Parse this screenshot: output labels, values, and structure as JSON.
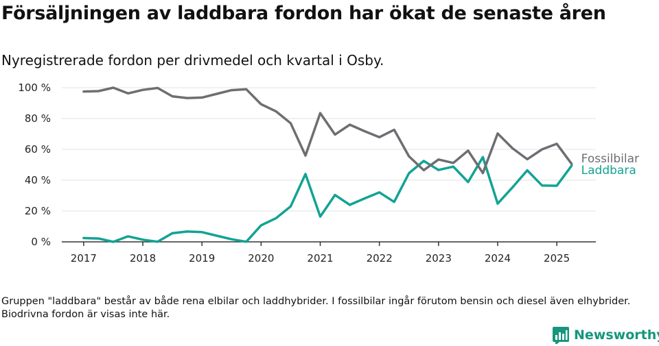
{
  "header": {
    "title": "Försäljningen av laddbara fordon har ökat de senaste åren",
    "subtitle": "Nyregistrerade fordon per drivmedel och kvartal i Osby."
  },
  "footnote": "Gruppen \"laddbara\" består av både rena elbilar och laddhybrider. I fossilbilar ingår förutom bensin och diesel även elhybrider. Biodrivna fordon är visas inte här.",
  "brand": {
    "name": "Newsworthy",
    "icon": "newsworthy-logo-icon",
    "color": "#15967d"
  },
  "chart_data": {
    "type": "line",
    "title": "Försäljningen av laddbara fordon har ökat de senaste åren",
    "subtitle": "Nyregistrerade fordon per drivmedel och kvartal i Osby.",
    "xlabel": "",
    "ylabel": "",
    "x": [
      2017.0,
      2017.25,
      2017.5,
      2017.75,
      2018.0,
      2018.25,
      2018.5,
      2018.75,
      2019.0,
      2019.25,
      2019.5,
      2019.75,
      2020.0,
      2020.25,
      2020.5,
      2020.75,
      2021.0,
      2021.25,
      2021.5,
      2021.75,
      2022.0,
      2022.25,
      2022.5,
      2022.75,
      2023.0,
      2023.25,
      2023.5,
      2023.75,
      2024.0,
      2024.25,
      2024.5,
      2024.75,
      2025.0,
      2025.25
    ],
    "xlim": [
      2016.63,
      2025.66
    ],
    "x_ticks": [
      2017,
      2018,
      2019,
      2020,
      2021,
      2022,
      2023,
      2024,
      2025
    ],
    "x_tick_labels": [
      "2017",
      "2018",
      "2019",
      "2020",
      "2021",
      "2022",
      "2023",
      "2024",
      "2025"
    ],
    "ylim": [
      0,
      100
    ],
    "y_ticks": [
      0,
      20,
      40,
      60,
      80,
      100
    ],
    "y_tick_labels": [
      "0 %",
      "20 %",
      "40 %",
      "60 %",
      "80 %",
      "100 %"
    ],
    "grid": "horizontal",
    "legend": "direct labels at line ends",
    "series": [
      {
        "name": "Fossilbilar",
        "color": "#6e6d72",
        "values": [
          97.5,
          97.8,
          100,
          96.3,
          98.6,
          99.8,
          94.4,
          93.3,
          93.6,
          96.0,
          98.4,
          99.0,
          89.3,
          84.7,
          77.0,
          56.0,
          83.5,
          69.6,
          76.0,
          71.8,
          67.9,
          72.7,
          55.5,
          46.5,
          53.4,
          51.2,
          59.2,
          44.6,
          70.3,
          60.7,
          53.6,
          60.0,
          63.6,
          50.6
        ]
      },
      {
        "name": "Laddbara",
        "color": "#12a394",
        "values": [
          2.5,
          2.2,
          0,
          3.6,
          1.4,
          0.1,
          5.6,
          6.7,
          6.3,
          4.0,
          1.7,
          0.1,
          10.7,
          15.3,
          23.0,
          44.0,
          16.4,
          30.4,
          24.0,
          28.2,
          32.1,
          25.9,
          44.5,
          52.5,
          46.6,
          48.8,
          38.8,
          55.0,
          24.8,
          35.3,
          46.4,
          36.6,
          36.4,
          49.4
        ]
      }
    ]
  }
}
